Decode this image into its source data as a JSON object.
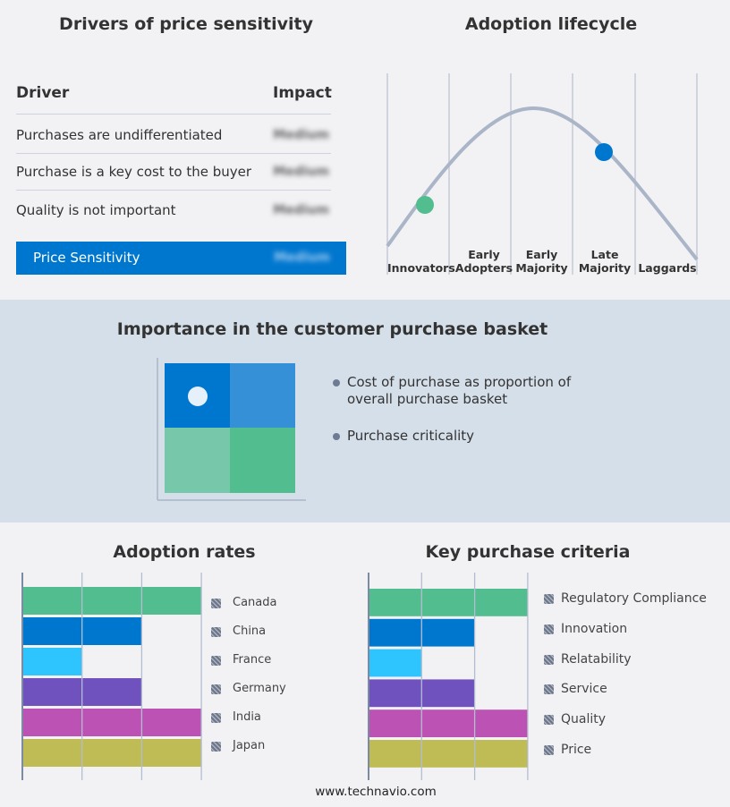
{
  "drivers": {
    "title": "Drivers of price sensitivity",
    "col_driver": "Driver",
    "col_impact": "Impact",
    "rows": [
      {
        "driver": "Purchases are undifferentiated",
        "impact": "Medium"
      },
      {
        "driver": "Purchase is a key cost to the buyer",
        "impact": "Medium"
      },
      {
        "driver": "Quality is not important",
        "impact": "Medium"
      }
    ],
    "summary": {
      "label": "Price Sensitivity",
      "impact": "Medium"
    },
    "highlight_color": "#0077cf"
  },
  "lifecycle": {
    "title": "Adoption lifecycle",
    "stages": [
      "Innovators",
      "Early Adopters",
      "Early Majority",
      "Late Majority",
      "Laggards"
    ],
    "markers": [
      {
        "stage": "Innovators",
        "color": "#52bd8e"
      },
      {
        "stage": "Late Majority",
        "color": "#0077cf"
      }
    ]
  },
  "basket": {
    "title": "Importance in the customer purchase basket",
    "legend": [
      "Cost of purchase as proportion of overall purchase basket",
      "Purchase criticality"
    ]
  },
  "chart_data": [
    {
      "type": "bar",
      "title": "Adoption rates",
      "orientation": "horizontal",
      "categories": [
        "Canada",
        "China",
        "France",
        "Germany",
        "India",
        "Japan"
      ],
      "values": [
        3,
        2,
        1,
        2,
        3,
        3
      ],
      "xlim": [
        0,
        3
      ],
      "grid": true,
      "legend": "right",
      "colors": [
        "#52bd8e",
        "#0077cf",
        "#2ec5ff",
        "#6f52bd",
        "#bd52b5",
        "#bfbb55"
      ]
    },
    {
      "type": "bar",
      "title": "Key purchase criteria",
      "orientation": "horizontal",
      "categories": [
        "Regulatory Compliance",
        "Innovation",
        "Relatability",
        "Service",
        "Quality",
        "Price"
      ],
      "values": [
        3,
        2,
        1,
        2,
        3,
        3
      ],
      "xlim": [
        0,
        3
      ],
      "grid": true,
      "legend": "right",
      "colors": [
        "#52bd8e",
        "#0077cf",
        "#2ec5ff",
        "#6f52bd",
        "#bd52b5",
        "#bfbb55"
      ]
    }
  ],
  "footer": "www.technavio.com"
}
